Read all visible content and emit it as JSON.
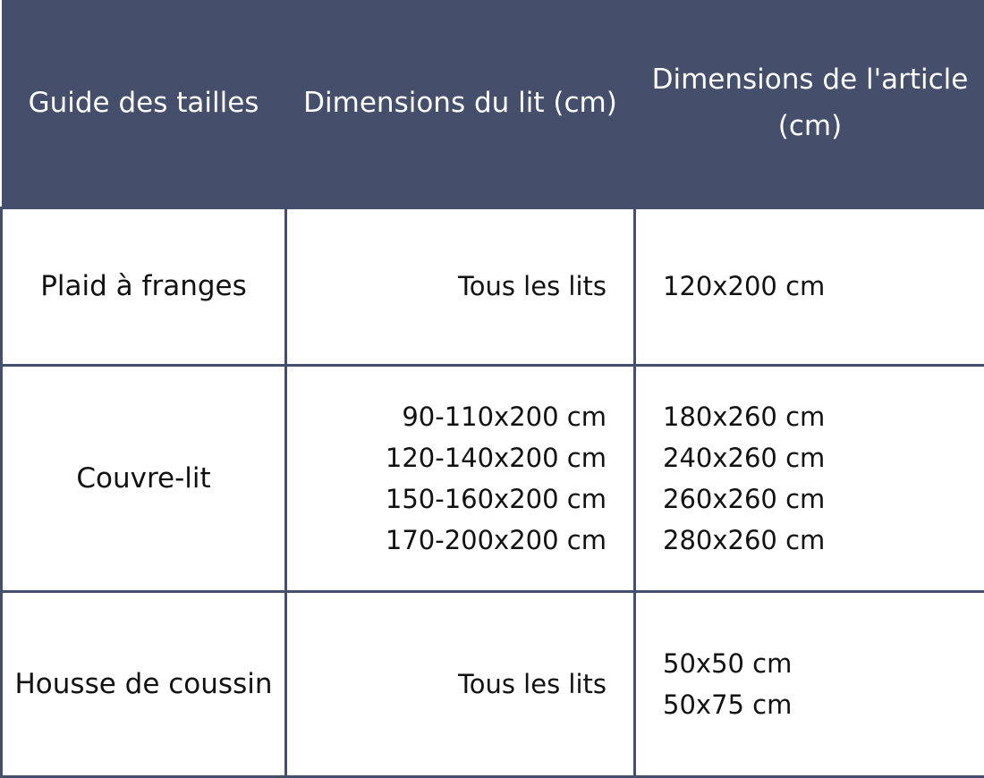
{
  "header": {
    "col1": "Guide des tailles",
    "col2": "Dimensions du lit (cm)",
    "col3": "Dimensions de l'article (cm)"
  },
  "rows": [
    {
      "name": "Plaid à franges",
      "bed": [
        "Tous les lits"
      ],
      "item": [
        "120x200 cm"
      ]
    },
    {
      "name": "Couvre-lit",
      "bed": [
        "90-110x200 cm",
        "120-140x200 cm",
        "150-160x200 cm",
        "170-200x200 cm"
      ],
      "item": [
        "180x260 cm",
        "240x260 cm",
        "260x260 cm",
        "280x260 cm"
      ]
    },
    {
      "name": "Housse de coussin",
      "bed": [
        "Tous les lits"
      ],
      "item": [
        "50x50 cm",
        "50x75 cm"
      ]
    }
  ],
  "colors": {
    "header_bg": "#454f6b",
    "border": "#454f6b",
    "header_text": "#ffffff"
  }
}
